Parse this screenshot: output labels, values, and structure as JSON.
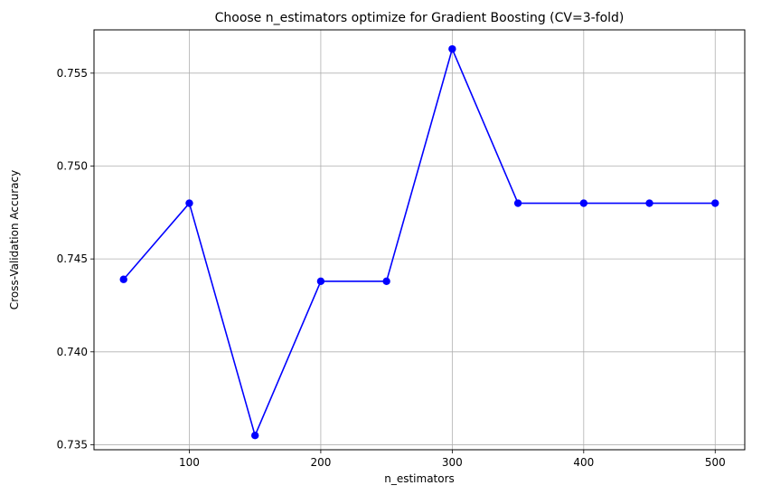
{
  "chart_data": {
    "type": "line",
    "title": "Choose n_estimators optimize for Gradient Boosting (CV=3-fold)",
    "xlabel": "n_estimators",
    "ylabel": "Cross-Validation Accuracy",
    "x": [
      50,
      100,
      150,
      200,
      250,
      300,
      350,
      400,
      450,
      500
    ],
    "series": [
      {
        "values": [
          0.7439,
          0.748,
          0.7355,
          0.7438,
          0.7438,
          0.7563,
          0.748,
          0.748,
          0.748,
          0.748
        ],
        "color": "#0000ff",
        "marker": "circle"
      }
    ],
    "xlim": [
      27.5,
      522.5
    ],
    "ylim": [
      0.73473,
      0.75733
    ],
    "xticks": [
      100,
      200,
      300,
      400,
      500
    ],
    "xtick_labels": [
      "100",
      "200",
      "300",
      "400",
      "500"
    ],
    "yticks": [
      0.735,
      0.74,
      0.745,
      0.75,
      0.755
    ],
    "ytick_labels": [
      "0.735",
      "0.740",
      "0.745",
      "0.750",
      "0.755"
    ],
    "grid": true
  }
}
